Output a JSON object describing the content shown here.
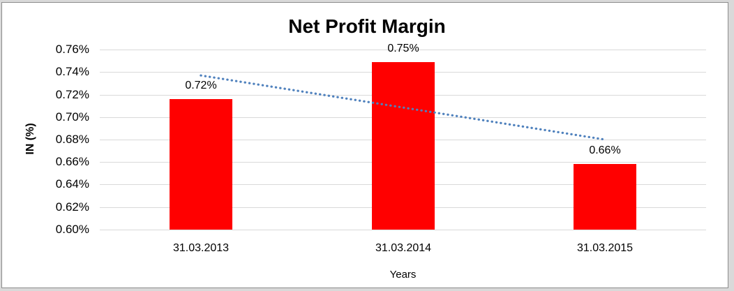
{
  "window": {
    "outer_background": "#d9d9d9",
    "frame_border_color": "#8c8c8c",
    "chart_background": "#ffffff"
  },
  "chart_data": {
    "type": "bar",
    "title": "Net Profit Margin",
    "xlabel": "Years",
    "ylabel": "IN (%)",
    "categories": [
      "31.03.2013",
      "31.03.2014",
      "31.03.2015"
    ],
    "values": [
      0.716,
      0.749,
      0.658
    ],
    "data_labels": [
      "0.72%",
      "0.75%",
      "0.66%"
    ],
    "ylim": [
      0.6,
      0.76
    ],
    "ytick_step": 0.02,
    "yticks": [
      "0.76%",
      "0.74%",
      "0.72%",
      "0.70%",
      "0.68%",
      "0.66%",
      "0.64%",
      "0.62%",
      "0.60%"
    ],
    "grid": true,
    "legend": false,
    "bar_color": "#ff0000",
    "gridline_color": "#d9d9d9",
    "trendline": {
      "style": "dotted",
      "color": "#4f81bd",
      "start_value": 0.737,
      "end_value": 0.68
    }
  }
}
